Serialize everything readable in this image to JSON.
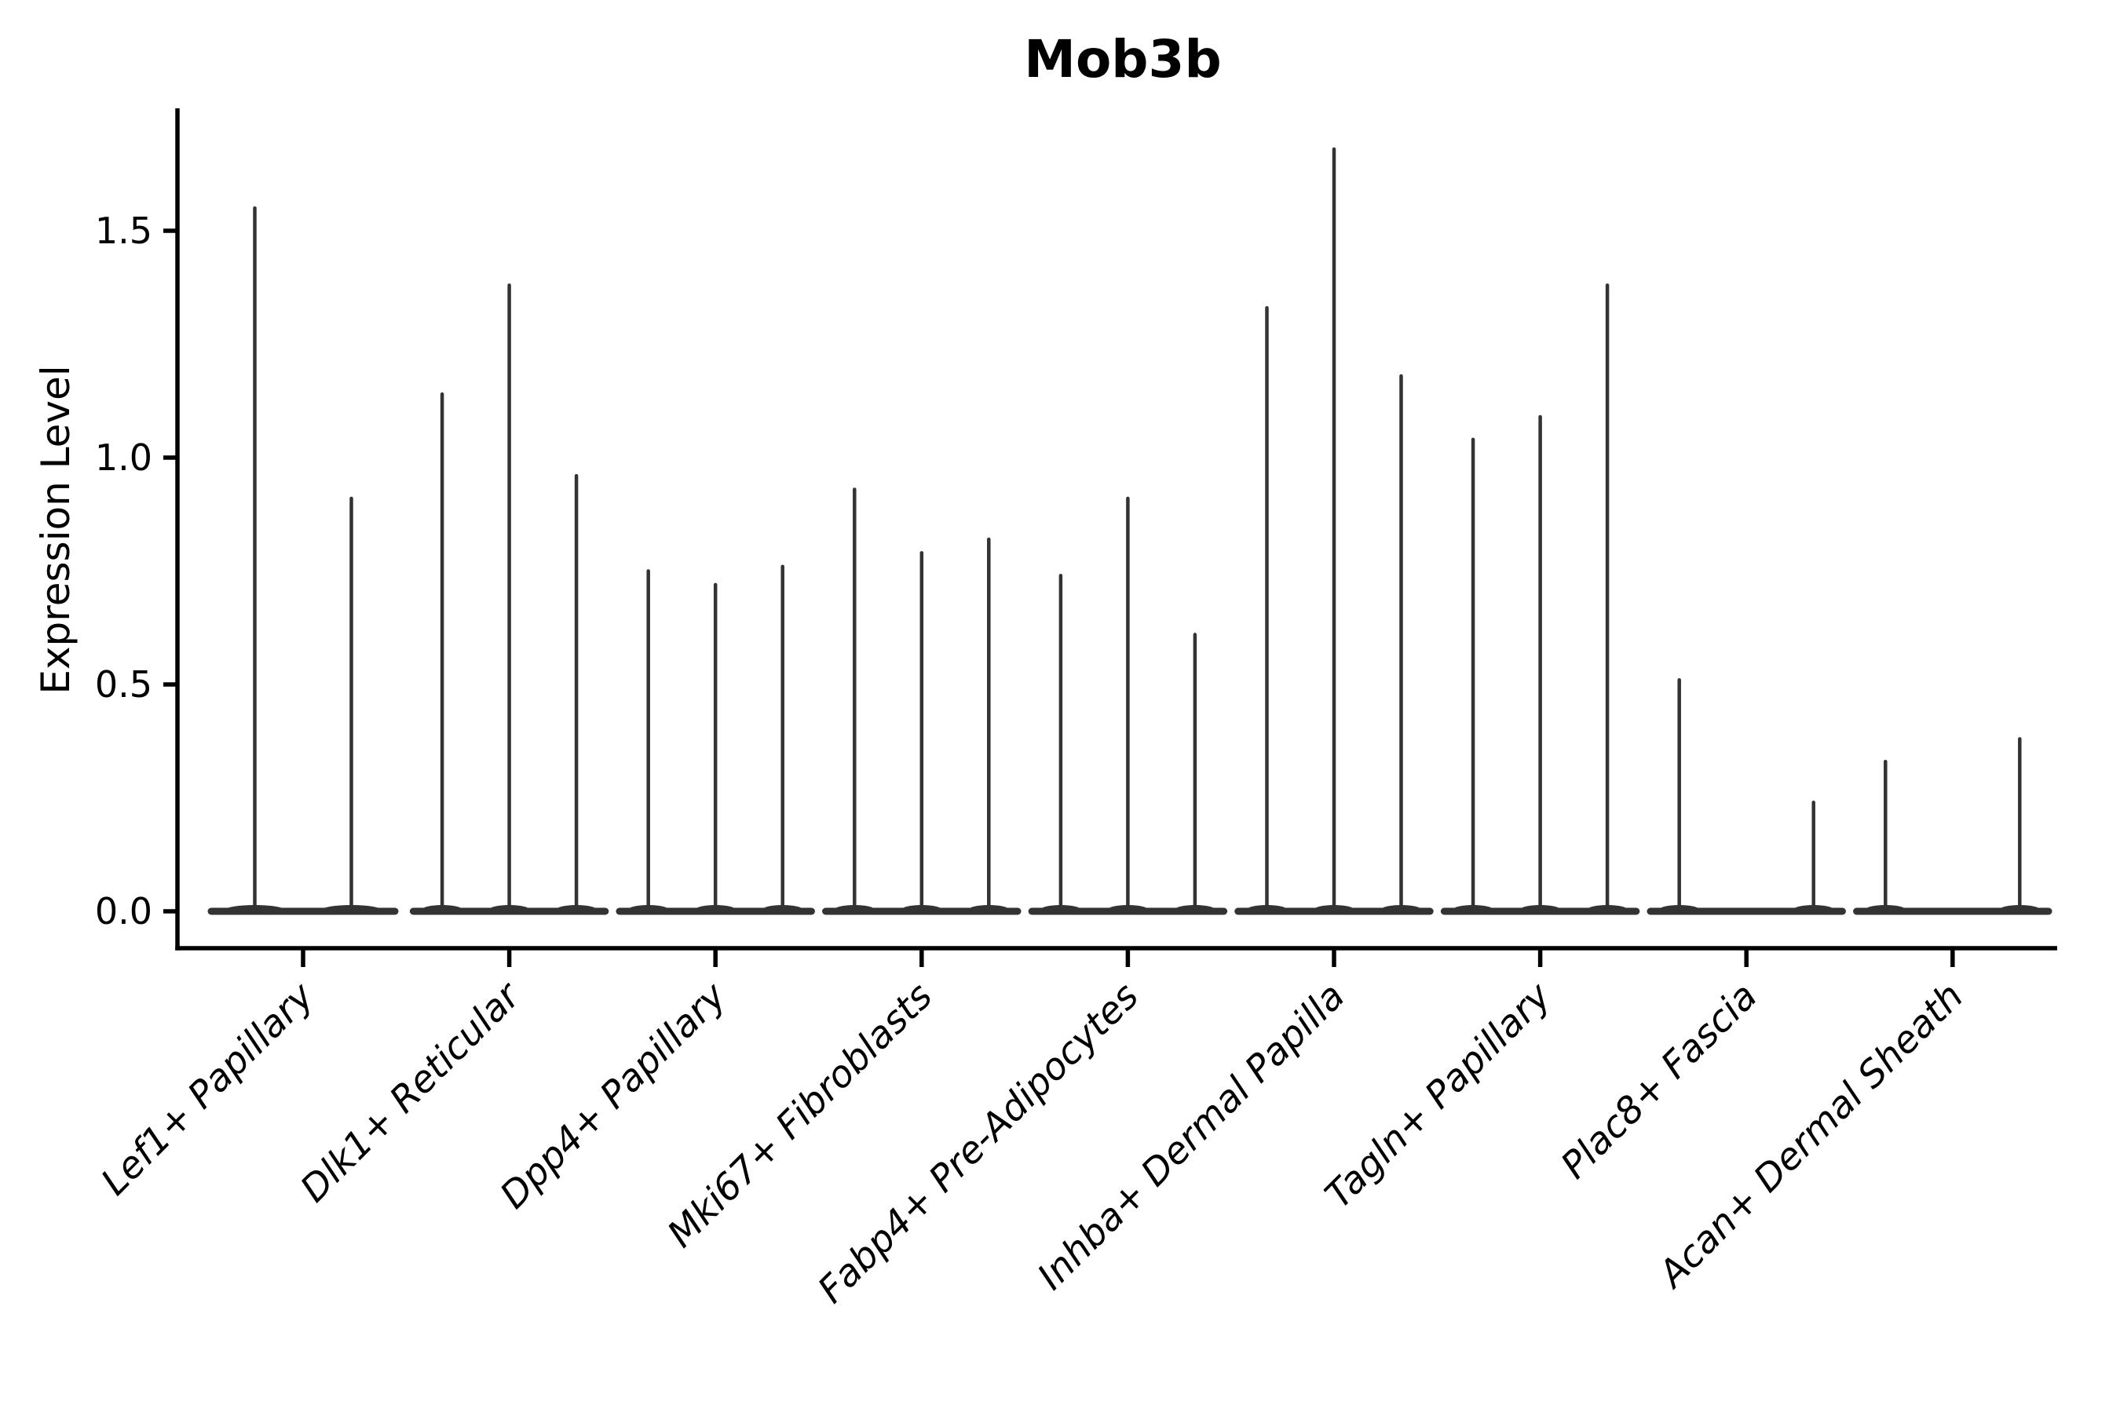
{
  "chart_data": {
    "type": "violin",
    "title": "Mob3b",
    "xlabel": "",
    "ylabel": "Expression Level",
    "yticks": [
      "0.0",
      "0.5",
      "1.0",
      "1.5"
    ],
    "ylim": [
      -0.08,
      1.77
    ],
    "grid": false,
    "legend": "none",
    "violin_style": "needle-thin violins: wide flat density mass at 0 with a thin tail rising to the max expression value",
    "violin_color": "#333333",
    "axis_color": "#000000",
    "background_color": "#ffffff",
    "categories": [
      "Lef1+ Papillary",
      "Dlk1+ Reticular",
      "Dpp4+ Papillary",
      "Mki67+ Fibroblasts",
      "Fabp4+ Pre-Adipocytes",
      "Inhba+ Dermal Papilla",
      "Tagln+ Papillary",
      "Plac8+ Fascia",
      "Acan+ Dermal Sheath"
    ],
    "groups": [
      {
        "category": "Lef1+ Papillary",
        "violin_max_values": [
          1.55,
          0.91
        ]
      },
      {
        "category": "Dlk1+ Reticular",
        "violin_max_values": [
          1.14,
          1.38,
          0.96
        ]
      },
      {
        "category": "Dpp4+ Papillary",
        "violin_max_values": [
          0.75,
          0.72,
          0.76
        ]
      },
      {
        "category": "Mki67+ Fibroblasts",
        "violin_max_values": [
          0.93,
          0.79,
          0.82
        ]
      },
      {
        "category": "Fabp4+ Pre-Adipocytes",
        "violin_max_values": [
          0.74,
          0.91,
          0.61
        ]
      },
      {
        "category": "Inhba+ Dermal Papilla",
        "violin_max_values": [
          1.33,
          1.68,
          1.18
        ]
      },
      {
        "category": "Tagln+ Papillary",
        "violin_max_values": [
          1.04,
          1.09,
          1.38
        ]
      },
      {
        "category": "Plac8+ Fascia",
        "violin_max_values": [
          0.51,
          0,
          0.24
        ]
      },
      {
        "category": "Acan+ Dermal Sheath",
        "violin_max_values": [
          0.33,
          0,
          0.38
        ]
      }
    ]
  }
}
